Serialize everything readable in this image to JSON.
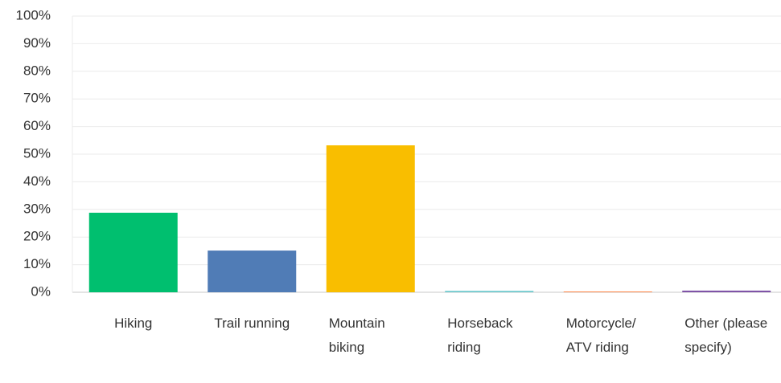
{
  "chart_data": {
    "type": "bar",
    "categories": [
      "Hiking",
      "Trail running",
      "Mountain biking",
      "Horseback riding",
      "Motorcycle/ ATV riding",
      "Other (please specify)"
    ],
    "values": [
      28.8,
      15.1,
      53.2,
      0.5,
      0.3,
      0.6
    ],
    "colors": [
      "#00bf6f",
      "#507cb6",
      "#f9be00",
      "#6bc8cd",
      "#ff8b4f",
      "#7f54a7"
    ],
    "ylim": [
      0,
      100
    ],
    "yticks": [
      {
        "value": 0,
        "label": "0%"
      },
      {
        "value": 10,
        "label": "10%"
      },
      {
        "value": 20,
        "label": "20%"
      },
      {
        "value": 30,
        "label": "30%"
      },
      {
        "value": 40,
        "label": "40%"
      },
      {
        "value": 50,
        "label": "50%"
      },
      {
        "value": 60,
        "label": "60%"
      },
      {
        "value": 70,
        "label": "70%"
      },
      {
        "value": 80,
        "label": "80%"
      },
      {
        "value": 90,
        "label": "90%"
      },
      {
        "value": 100,
        "label": "100%"
      }
    ],
    "grid": true
  }
}
